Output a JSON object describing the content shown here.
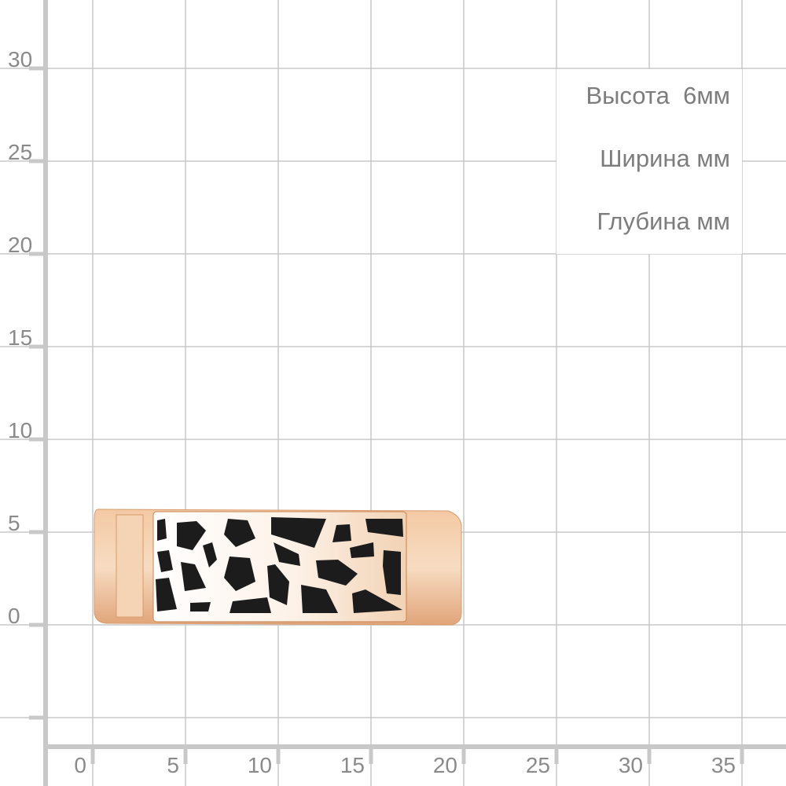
{
  "dimensions": {
    "height_label": "Высота  6мм",
    "width_label": "Ширина мм",
    "depth_label": "Глубина мм"
  },
  "axes": {
    "y_ticks": [
      "30",
      "25",
      "20",
      "15",
      "10",
      "5",
      "0"
    ],
    "x_ticks": [
      "0",
      "5",
      "10",
      "15",
      "20",
      "25",
      "30",
      "35"
    ]
  },
  "product": {
    "name_icon": "ring-with-black-enamel-image",
    "metal_color": "#e9b48c",
    "enamel_color": "#1a1a1a"
  },
  "colors": {
    "grid": "#c8c8c8",
    "label": "#8a8a8a"
  }
}
